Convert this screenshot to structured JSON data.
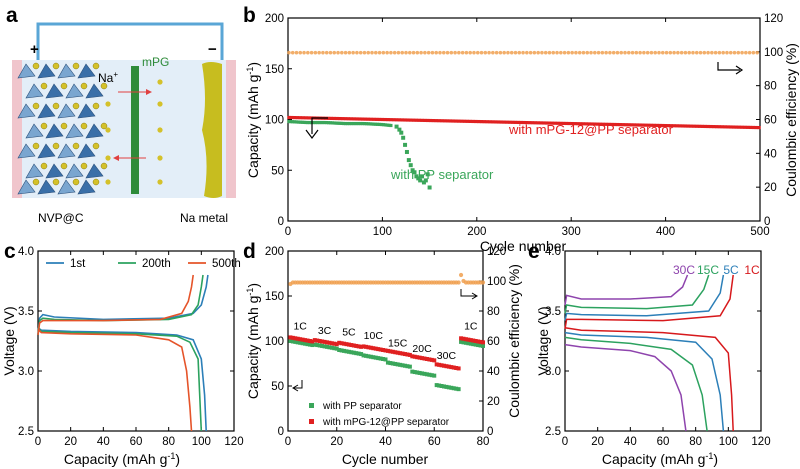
{
  "panels": {
    "a": {
      "label": "a",
      "plus": "+",
      "minus": "−",
      "ion_base": "Na",
      "ion_sup": "+",
      "separator_label": "mPG",
      "cathode_label": "NVP@C",
      "anode_label": "Na metal",
      "colors": {
        "wire": "#5aa6d6",
        "electrolyte": "#e3eef8",
        "cathode_back": "#f0c5cc",
        "anode": "#c7bd1f",
        "separator": "#2e8b3a",
        "arrow": "#e04040",
        "ion": "#d4c12a"
      }
    },
    "b": {
      "label": "b",
      "texts": {
        "cycle_arrow_left": "with mPG-12@PP separator",
        "pp": "with PP separator"
      },
      "colors": {
        "mpg": "#e02020",
        "pp": "#3aa65a",
        "ce": "#f0a050"
      }
    },
    "c": {
      "label": "c",
      "colors": {
        "1st": "#2c7fb8",
        "200th": "#2ca25f",
        "500th": "#e5542a"
      }
    },
    "d": {
      "label": "d",
      "colors": {
        "mpg": "#e02020",
        "pp": "#3aa65a",
        "ce": "#f0a050"
      }
    },
    "e": {
      "label": "e",
      "colors": {
        "30C": "#8e44ad",
        "15C": "#2ca25f",
        "5C": "#2c7fb8",
        "1C": "#d7191c"
      }
    }
  },
  "chart_data": [
    {
      "panel": "b",
      "type": "scatter",
      "xlabel": "Cycle number",
      "ylabel": "Capacity (mAh g",
      "ylabel_sup": "-1",
      "ylabel_end": ")",
      "y2label": "Coulombic efficiency (%)",
      "xlim": [
        0,
        500
      ],
      "ylim": [
        0,
        200
      ],
      "y2lim": [
        0,
        120
      ],
      "xticks": [
        0,
        100,
        200,
        300,
        400,
        500
      ],
      "yticks": [
        0,
        50,
        100,
        150,
        200
      ],
      "y2ticks": [
        0,
        20,
        40,
        60,
        80,
        100,
        120
      ],
      "series": [
        {
          "name": "with mPG-12@PP separator",
          "axis": "left",
          "x": [
            1,
            50,
            100,
            150,
            200,
            250,
            300,
            350,
            400,
            450,
            500
          ],
          "y": [
            102,
            101,
            100,
            99,
            98,
            97,
            96,
            95,
            94,
            93,
            92
          ]
        },
        {
          "name": "with PP separator",
          "axis": "left",
          "x": [
            1,
            20,
            40,
            60,
            80,
            100,
            110,
            115,
            118,
            120,
            122,
            124,
            126,
            128,
            130,
            132,
            134,
            136,
            138,
            140,
            142,
            144,
            146,
            148,
            150
          ],
          "y": [
            98,
            97,
            97,
            96,
            96,
            95,
            94,
            93,
            90,
            87,
            82,
            75,
            68,
            60,
            55,
            50,
            48,
            44,
            42,
            40,
            44,
            38,
            40,
            46,
            33
          ]
        },
        {
          "name": "Coulombic efficiency",
          "axis": "right",
          "x": [
            1,
            100,
            200,
            300,
            400,
            500
          ],
          "y": [
            99.5,
            99.5,
            99.5,
            99.5,
            99.5,
            99.5
          ]
        }
      ]
    },
    {
      "panel": "c",
      "type": "line",
      "xlabel": "Capacity (mAh g",
      "xlabel_sup": "-1",
      "xlabel_end": ")",
      "ylabel": "Voltage (V)",
      "xlim": [
        0,
        120
      ],
      "ylim": [
        2.5,
        4.0
      ],
      "xticks": [
        0,
        20,
        40,
        60,
        80,
        100,
        120
      ],
      "yticks": [
        2.5,
        3.0,
        3.5,
        4.0
      ],
      "legend": [
        "1st",
        "200th",
        "500th"
      ],
      "series": [
        {
          "name": "1st",
          "charge": [
            [
              0,
              3.3
            ],
            [
              1,
              3.44
            ],
            [
              3,
              3.47
            ],
            [
              10,
              3.45
            ],
            [
              40,
              3.43
            ],
            [
              80,
              3.44
            ],
            [
              95,
              3.48
            ],
            [
              100,
              3.55
            ],
            [
              103,
              3.7
            ],
            [
              104,
              3.8
            ]
          ],
          "discharge": [
            [
              0,
              3.36
            ],
            [
              2,
              3.34
            ],
            [
              20,
              3.33
            ],
            [
              60,
              3.32
            ],
            [
              85,
              3.3
            ],
            [
              95,
              3.26
            ],
            [
              100,
              3.1
            ],
            [
              102,
              2.8
            ],
            [
              103,
              2.5
            ]
          ]
        },
        {
          "name": "200th",
          "charge": [
            [
              0,
              3.3
            ],
            [
              1,
              3.42
            ],
            [
              3,
              3.44
            ],
            [
              10,
              3.43
            ],
            [
              40,
              3.42
            ],
            [
              80,
              3.43
            ],
            [
              94,
              3.47
            ],
            [
              98,
              3.55
            ],
            [
              100,
              3.7
            ],
            [
              101,
              3.8
            ]
          ],
          "discharge": [
            [
              0,
              3.36
            ],
            [
              2,
              3.33
            ],
            [
              20,
              3.32
            ],
            [
              60,
              3.31
            ],
            [
              85,
              3.29
            ],
            [
              93,
              3.24
            ],
            [
              98,
              3.1
            ],
            [
              99,
              2.8
            ],
            [
              100,
              2.5
            ]
          ]
        },
        {
          "name": "500th",
          "charge": [
            [
              0,
              3.3
            ],
            [
              1,
              3.4
            ],
            [
              3,
              3.42
            ],
            [
              10,
              3.42
            ],
            [
              40,
              3.42
            ],
            [
              75,
              3.43
            ],
            [
              88,
              3.48
            ],
            [
              92,
              3.58
            ],
            [
              94,
              3.7
            ],
            [
              95,
              3.8
            ]
          ],
          "discharge": [
            [
              0,
              3.35
            ],
            [
              2,
              3.32
            ],
            [
              20,
              3.31
            ],
            [
              60,
              3.3
            ],
            [
              80,
              3.26
            ],
            [
              88,
              3.2
            ],
            [
              91,
              3.0
            ],
            [
              93,
              2.7
            ],
            [
              94,
              2.5
            ]
          ]
        }
      ]
    },
    {
      "panel": "d",
      "type": "scatter",
      "xlabel": "Cycle number",
      "ylabel": "Capacity (mAh g",
      "ylabel_sup": "-1",
      "ylabel_end": ")",
      "y2label": "Coulombic efficiency (%)",
      "xlim": [
        0,
        80
      ],
      "ylim": [
        0,
        200
      ],
      "y2lim": [
        0,
        120
      ],
      "xticks": [
        0,
        20,
        40,
        60,
        80
      ],
      "yticks": [
        0,
        50,
        100,
        150,
        200
      ],
      "y2ticks": [
        0,
        20,
        40,
        60,
        80,
        100,
        120
      ],
      "rate_labels": [
        {
          "text": "1C",
          "x": 5,
          "y": 113
        },
        {
          "text": "3C",
          "x": 15,
          "y": 108
        },
        {
          "text": "5C",
          "x": 25,
          "y": 106
        },
        {
          "text": "10C",
          "x": 35,
          "y": 102
        },
        {
          "text": "15C",
          "x": 45,
          "y": 94
        },
        {
          "text": "20C",
          "x": 55,
          "y": 88
        },
        {
          "text": "30C",
          "x": 65,
          "y": 80
        },
        {
          "text": "1C",
          "x": 75,
          "y": 113
        }
      ],
      "legend": [
        "with PP separator",
        "with mPG-12@PP separator"
      ],
      "series": [
        {
          "name": "with PP separator",
          "axis": "left",
          "steps": [
            [
              1,
              10,
              100
            ],
            [
              11,
              20,
              96
            ],
            [
              21,
              30,
              90
            ],
            [
              31,
              40,
              84
            ],
            [
              41,
              50,
              76
            ],
            [
              51,
              60,
              66
            ],
            [
              61,
              70,
              51
            ],
            [
              71,
              80,
              99
            ]
          ]
        },
        {
          "name": "with mPG-12@PP separator",
          "axis": "left",
          "steps": [
            [
              1,
              10,
              104
            ],
            [
              11,
              20,
              101
            ],
            [
              21,
              30,
              98
            ],
            [
              31,
              40,
              94
            ],
            [
              41,
              50,
              89
            ],
            [
              51,
              60,
              83
            ],
            [
              61,
              70,
              74
            ],
            [
              71,
              80,
              103
            ]
          ]
        },
        {
          "name": "Coulombic efficiency",
          "axis": "right",
          "x": [
            1,
            20,
            40,
            60,
            70,
            71,
            72,
            80
          ],
          "y": [
            98,
            99,
            99,
            99,
            99,
            104,
            100,
            99
          ]
        }
      ]
    },
    {
      "panel": "e",
      "type": "line",
      "xlabel": "Capacity (mAh g",
      "xlabel_sup": "-1",
      "xlabel_end": ")",
      "ylabel": "Voltage (V)",
      "xlim": [
        0,
        120
      ],
      "ylim": [
        2.5,
        4.0
      ],
      "xticks": [
        0,
        20,
        40,
        60,
        80,
        100,
        120
      ],
      "yticks": [
        2.5,
        3.0,
        3.5,
        4.0
      ],
      "curve_labels": [
        "30C",
        "15C",
        "5C",
        "1C"
      ],
      "series": [
        {
          "name": "30C",
          "charge": [
            [
              0,
              3.55
            ],
            [
              1,
              3.63
            ],
            [
              10,
              3.6
            ],
            [
              40,
              3.6
            ],
            [
              65,
              3.62
            ],
            [
              72,
              3.7
            ],
            [
              75,
              3.8
            ]
          ],
          "discharge": [
            [
              0,
              3.22
            ],
            [
              10,
              3.2
            ],
            [
              40,
              3.17
            ],
            [
              55,
              3.12
            ],
            [
              65,
              3.0
            ],
            [
              71,
              2.8
            ],
            [
              74,
              2.5
            ]
          ]
        },
        {
          "name": "15C",
          "charge": [
            [
              0,
              3.48
            ],
            [
              1,
              3.55
            ],
            [
              10,
              3.53
            ],
            [
              50,
              3.52
            ],
            [
              78,
              3.55
            ],
            [
              85,
              3.68
            ],
            [
              88,
              3.8
            ]
          ],
          "discharge": [
            [
              0,
              3.28
            ],
            [
              10,
              3.26
            ],
            [
              40,
              3.23
            ],
            [
              65,
              3.18
            ],
            [
              78,
              3.05
            ],
            [
              84,
              2.8
            ],
            [
              87,
              2.5
            ]
          ]
        },
        {
          "name": "5C",
          "charge": [
            [
              0,
              3.42
            ],
            [
              1,
              3.48
            ],
            [
              10,
              3.47
            ],
            [
              50,
              3.46
            ],
            [
              88,
              3.5
            ],
            [
              95,
              3.65
            ],
            [
              97,
              3.8
            ]
          ],
          "discharge": [
            [
              0,
              3.32
            ],
            [
              10,
              3.3
            ],
            [
              50,
              3.28
            ],
            [
              80,
              3.24
            ],
            [
              90,
              3.1
            ],
            [
              95,
              2.8
            ],
            [
              97,
              2.5
            ]
          ]
        },
        {
          "name": "1C",
          "charge": [
            [
              0,
              3.35
            ],
            [
              1,
              3.43
            ],
            [
              10,
              3.43
            ],
            [
              60,
              3.42
            ],
            [
              95,
              3.46
            ],
            [
              101,
              3.6
            ],
            [
              103,
              3.8
            ]
          ],
          "discharge": [
            [
              0,
              3.36
            ],
            [
              10,
              3.34
            ],
            [
              60,
              3.32
            ],
            [
              92,
              3.28
            ],
            [
              100,
              3.15
            ],
            [
              102,
              2.8
            ],
            [
              103,
              2.5
            ]
          ]
        }
      ]
    }
  ]
}
